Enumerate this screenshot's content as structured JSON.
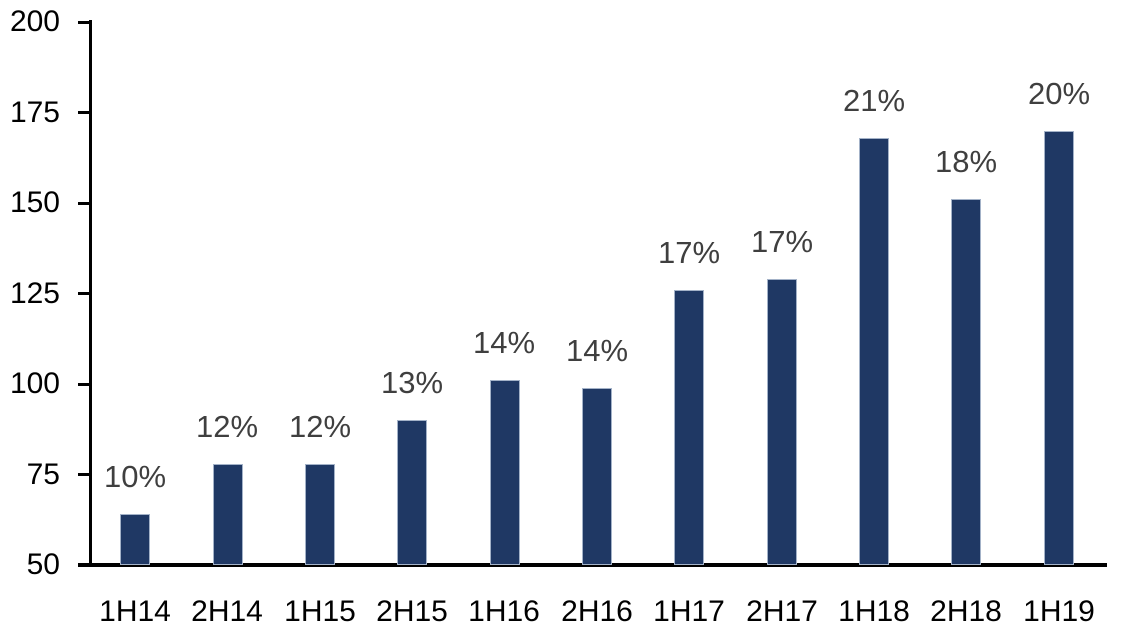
{
  "chart_data": {
    "type": "bar",
    "title": "",
    "xlabel": "",
    "ylabel": "",
    "categories": [
      "1H14",
      "2H14",
      "1H15",
      "2H15",
      "1H16",
      "2H16",
      "1H17",
      "2H17",
      "1H18",
      "2H18",
      "1H19"
    ],
    "values": [
      64,
      78,
      78,
      90,
      101,
      99,
      126,
      129,
      168,
      151,
      170
    ],
    "bar_labels": [
      "10%",
      "12%",
      "12%",
      "13%",
      "14%",
      "14%",
      "17%",
      "17%",
      "21%",
      "18%",
      "20%"
    ],
    "ylim": [
      50,
      200
    ],
    "yticks": [
      50,
      75,
      100,
      125,
      150,
      175,
      200
    ],
    "grid": false,
    "legend": false,
    "colors": {
      "bar_fill": "#1F3864",
      "bar_border": "#A3B2C8",
      "bar_label_text": "#3F3F3F",
      "axis_line": "#000000",
      "axis_text": "#000000",
      "background": "#FFFFFF"
    }
  }
}
